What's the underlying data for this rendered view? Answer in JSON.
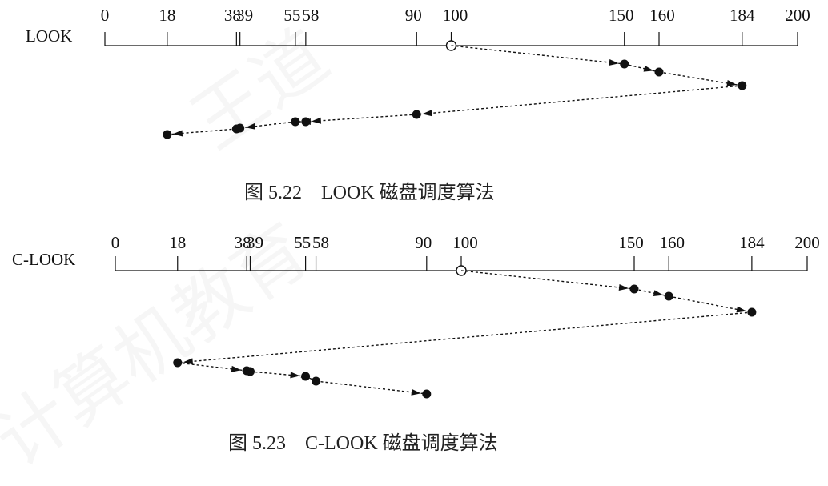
{
  "diagrams": [
    {
      "label": "LOOK",
      "ticks": [
        0,
        18,
        38,
        39,
        55,
        58,
        90,
        100,
        150,
        160,
        184,
        200
      ],
      "start": 100,
      "sequence": [
        150,
        160,
        184,
        90,
        58,
        55,
        39,
        38,
        18
      ],
      "caption": "图 5.22　LOOK 磁盘调度算法"
    },
    {
      "label": "C-LOOK",
      "ticks": [
        0,
        18,
        38,
        39,
        55,
        58,
        90,
        100,
        150,
        160,
        184,
        200
      ],
      "start": 100,
      "sequence": [
        150,
        160,
        184,
        18,
        38,
        39,
        55,
        58,
        90
      ],
      "caption": "图 5.23　C-LOOK 磁盘调度算法"
    }
  ],
  "colors": {
    "ink": "#111111",
    "caption": "#222222"
  },
  "watermark": {
    "text_1": "王道",
    "text_2": "计算机教育"
  }
}
